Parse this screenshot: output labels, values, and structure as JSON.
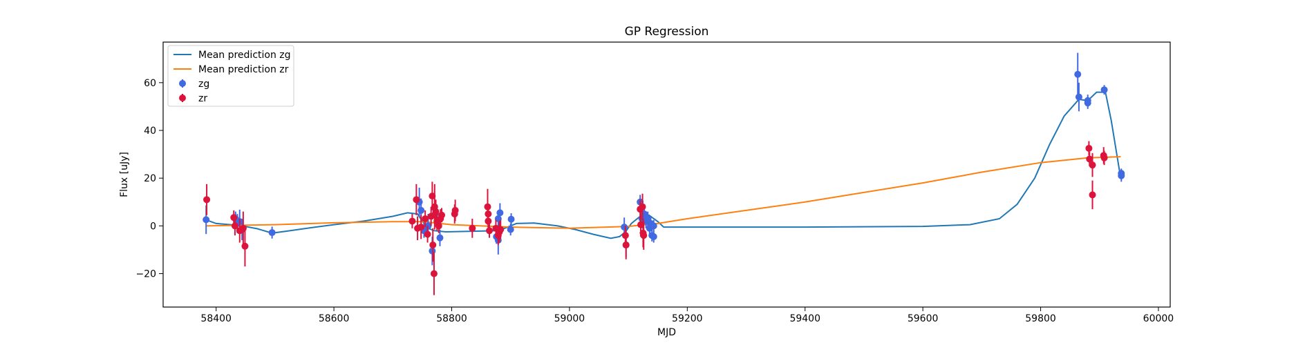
{
  "chart_data": {
    "type": "scatter",
    "title": "GP Regression",
    "xlabel": "MJD",
    "ylabel": "Flux [uJy]",
    "xlim": [
      58310,
      60020
    ],
    "ylim": [
      -34,
      77
    ],
    "xticks": [
      58400,
      58600,
      58800,
      59000,
      59200,
      59400,
      59600,
      59800,
      60000
    ],
    "yticks": [
      -20,
      0,
      20,
      40,
      60
    ],
    "grid": false,
    "legend_position": "top-left",
    "legend": [
      {
        "label": "Mean prediction zg",
        "kind": "line",
        "color": "#1f77b4"
      },
      {
        "label": "Mean prediction zr",
        "kind": "line",
        "color": "#ff7f0e"
      },
      {
        "label": "zg",
        "kind": "errorbar",
        "color": "#4169e1"
      },
      {
        "label": "zr",
        "kind": "errorbar",
        "color": "#dc143c"
      }
    ],
    "series": [
      {
        "name": "Mean prediction zg",
        "type": "line",
        "color": "#1f77b4",
        "points": [
          [
            58383,
            2.5
          ],
          [
            58400,
            1.0
          ],
          [
            58440,
            0.2
          ],
          [
            58470,
            -1.2
          ],
          [
            58495,
            -3.0
          ],
          [
            58520,
            -2.2
          ],
          [
            58560,
            -0.8
          ],
          [
            58600,
            0.5
          ],
          [
            58650,
            2.0
          ],
          [
            58700,
            4.0
          ],
          [
            58725,
            5.5
          ],
          [
            58742,
            5.0
          ],
          [
            58750,
            2.0
          ],
          [
            58760,
            -1.0
          ],
          [
            58770,
            -2.0
          ],
          [
            58790,
            -2.5
          ],
          [
            58830,
            -2.3
          ],
          [
            58880,
            -2.0
          ],
          [
            58910,
            1.0
          ],
          [
            58940,
            1.2
          ],
          [
            58980,
            0.0
          ],
          [
            59010,
            -1.5
          ],
          [
            59040,
            -3.5
          ],
          [
            59070,
            -5.2
          ],
          [
            59085,
            -4.5
          ],
          [
            59095,
            -2.5
          ],
          [
            59105,
            1.0
          ],
          [
            59120,
            4.0
          ],
          [
            59135,
            4.5
          ],
          [
            59150,
            1.8
          ],
          [
            59160,
            -0.5
          ],
          [
            59200,
            -0.5
          ],
          [
            59400,
            -0.5
          ],
          [
            59600,
            -0.2
          ],
          [
            59680,
            0.5
          ],
          [
            59730,
            3.0
          ],
          [
            59760,
            9.0
          ],
          [
            59790,
            20.0
          ],
          [
            59815,
            34.0
          ],
          [
            59840,
            46.0
          ],
          [
            59865,
            53.0
          ],
          [
            59880,
            52.5
          ],
          [
            59895,
            56.0
          ],
          [
            59910,
            56.0
          ],
          [
            59920,
            44.0
          ],
          [
            59930,
            29.0
          ],
          [
            59936,
            20.0
          ]
        ]
      },
      {
        "name": "Mean prediction zr",
        "type": "line",
        "color": "#ff7f0e",
        "points": [
          [
            58383,
            0.0
          ],
          [
            58500,
            0.5
          ],
          [
            58600,
            1.3
          ],
          [
            58700,
            1.8
          ],
          [
            58750,
            1.8
          ],
          [
            58800,
            0.5
          ],
          [
            58900,
            -0.5
          ],
          [
            59000,
            -1.0
          ],
          [
            59100,
            -0.2
          ],
          [
            59150,
            1.0
          ],
          [
            59200,
            3.0
          ],
          [
            59300,
            6.5
          ],
          [
            59400,
            10.0
          ],
          [
            59500,
            14.0
          ],
          [
            59600,
            18.0
          ],
          [
            59700,
            22.5
          ],
          [
            59800,
            26.5
          ],
          [
            59880,
            28.5
          ],
          [
            59936,
            29.0
          ]
        ]
      },
      {
        "name": "zg",
        "type": "errorbar",
        "color": "#4169e1",
        "points": [
          {
            "x": 58383,
            "y": 2.6,
            "err": 6.0
          },
          {
            "x": 58433,
            "y": 3.0,
            "err": 3.0
          },
          {
            "x": 58436,
            "y": 1.0,
            "err": 4.0
          },
          {
            "x": 58440,
            "y": 1.8,
            "err": 5.0
          },
          {
            "x": 58444,
            "y": -1.5,
            "err": 4.5
          },
          {
            "x": 58495,
            "y": -2.8,
            "err": 2.5
          },
          {
            "x": 58745,
            "y": 10.0,
            "err": 6.0
          },
          {
            "x": 58748,
            "y": 6.5,
            "err": 5.0
          },
          {
            "x": 58753,
            "y": -2.0,
            "err": 3.0
          },
          {
            "x": 58760,
            "y": 0.0,
            "err": 5.0
          },
          {
            "x": 58767,
            "y": -10.5,
            "err": 6.0
          },
          {
            "x": 58772,
            "y": 5.0,
            "err": 5.0
          },
          {
            "x": 58780,
            "y": -5.0,
            "err": 3.5
          },
          {
            "x": 58876,
            "y": -4.5,
            "err": 3.0
          },
          {
            "x": 58879,
            "y": 3.0,
            "err": 3.5
          },
          {
            "x": 58882,
            "y": 5.5,
            "err": 4.0
          },
          {
            "x": 58879,
            "y": -6.0,
            "err": 6.0
          },
          {
            "x": 58900,
            "y": -1.5,
            "err": 2.5
          },
          {
            "x": 58901,
            "y": 2.8,
            "err": 2.5
          },
          {
            "x": 59093,
            "y": -0.5,
            "err": 4.0
          },
          {
            "x": 59096,
            "y": -8.0,
            "err": 5.0
          },
          {
            "x": 59120,
            "y": 10.0,
            "err": 3.0
          },
          {
            "x": 59123,
            "y": 3.0,
            "err": 4.0
          },
          {
            "x": 59127,
            "y": 5.0,
            "err": 3.5
          },
          {
            "x": 59130,
            "y": 2.0,
            "err": 3.0
          },
          {
            "x": 59133,
            "y": 3.0,
            "err": 3.0
          },
          {
            "x": 59136,
            "y": -1.0,
            "err": 3.0
          },
          {
            "x": 59138,
            "y": 1.0,
            "err": 2.5
          },
          {
            "x": 59140,
            "y": -4.0,
            "err": 2.5
          },
          {
            "x": 59143,
            "y": -4.5,
            "err": 2.5
          },
          {
            "x": 59143,
            "y": 0.0,
            "err": 2.5
          },
          {
            "x": 59863,
            "y": 63.5,
            "err": 9.0
          },
          {
            "x": 59865,
            "y": 54.0,
            "err": 6.0
          },
          {
            "x": 59880,
            "y": 51.5,
            "err": 2.5
          },
          {
            "x": 59880,
            "y": 52.5,
            "err": 2.5
          },
          {
            "x": 59908,
            "y": 57.0,
            "err": 2.0
          },
          {
            "x": 59937,
            "y": 21.0,
            "err": 2.5
          },
          {
            "x": 59937,
            "y": 22.0,
            "err": 2.0
          }
        ]
      },
      {
        "name": "zr",
        "type": "errorbar",
        "color": "#dc143c",
        "points": [
          {
            "x": 58384,
            "y": 11.0,
            "err": 6.5
          },
          {
            "x": 58430,
            "y": 3.5,
            "err": 3.0
          },
          {
            "x": 58432,
            "y": 0.0,
            "err": 4.0
          },
          {
            "x": 58440,
            "y": -2.0,
            "err": 5.0
          },
          {
            "x": 58446,
            "y": -1.0,
            "err": 7.0
          },
          {
            "x": 58449,
            "y": -8.5,
            "err": 8.5
          },
          {
            "x": 58733,
            "y": 2.0,
            "err": 3.0
          },
          {
            "x": 58740,
            "y": 11.0,
            "err": 6.5
          },
          {
            "x": 58742,
            "y": -1.0,
            "err": 5.0
          },
          {
            "x": 58748,
            "y": -0.5,
            "err": 5.0
          },
          {
            "x": 58755,
            "y": 3.0,
            "err": 3.5
          },
          {
            "x": 58759,
            "y": -3.5,
            "err": 3.5
          },
          {
            "x": 58765,
            "y": 4.0,
            "err": 4.0
          },
          {
            "x": 58767,
            "y": 12.5,
            "err": 6.0
          },
          {
            "x": 58768,
            "y": -8.0,
            "err": 7.0
          },
          {
            "x": 58770,
            "y": -20.0,
            "err": 9.0
          },
          {
            "x": 58771,
            "y": 8.0,
            "err": 9.5
          },
          {
            "x": 58773,
            "y": 6.0,
            "err": 5.0
          },
          {
            "x": 58775,
            "y": 2.0,
            "err": 4.0
          },
          {
            "x": 58778,
            "y": 0.0,
            "err": 3.0
          },
          {
            "x": 58781,
            "y": 3.0,
            "err": 4.0
          },
          {
            "x": 58783,
            "y": 4.5,
            "err": 3.0
          },
          {
            "x": 58805,
            "y": 5.0,
            "err": 4.0
          },
          {
            "x": 58806,
            "y": 6.5,
            "err": 4.5
          },
          {
            "x": 58835,
            "y": -1.0,
            "err": 4.0
          },
          {
            "x": 58861,
            "y": 8.0,
            "err": 7.5
          },
          {
            "x": 58862,
            "y": 5.0,
            "err": 4.0
          },
          {
            "x": 58862,
            "y": 2.0,
            "err": 5.0
          },
          {
            "x": 58864,
            "y": -2.0,
            "err": 3.0
          },
          {
            "x": 58875,
            "y": -1.0,
            "err": 3.5
          },
          {
            "x": 58879,
            "y": -4.0,
            "err": 4.0
          },
          {
            "x": 58881,
            "y": -2.5,
            "err": 4.5
          },
          {
            "x": 58883,
            "y": -1.5,
            "err": 4.0
          },
          {
            "x": 59095,
            "y": -4.0,
            "err": 4.0
          },
          {
            "x": 59096,
            "y": -8.0,
            "err": 6.0
          },
          {
            "x": 59120,
            "y": 7.0,
            "err": 4.0
          },
          {
            "x": 59121,
            "y": 0.5,
            "err": 5.0
          },
          {
            "x": 59124,
            "y": 8.0,
            "err": 5.5
          },
          {
            "x": 59125,
            "y": -3.0,
            "err": 6.0
          },
          {
            "x": 59126,
            "y": -4.0,
            "err": 6.0
          },
          {
            "x": 59882,
            "y": 32.5,
            "err": 3.0
          },
          {
            "x": 59883,
            "y": 28.0,
            "err": 3.0
          },
          {
            "x": 59888,
            "y": 25.5,
            "err": 5.0
          },
          {
            "x": 59888,
            "y": 13.0,
            "err": 6.0
          },
          {
            "x": 59907,
            "y": 29.5,
            "err": 3.5
          },
          {
            "x": 59908,
            "y": 28.5,
            "err": 3.0
          }
        ]
      }
    ]
  }
}
